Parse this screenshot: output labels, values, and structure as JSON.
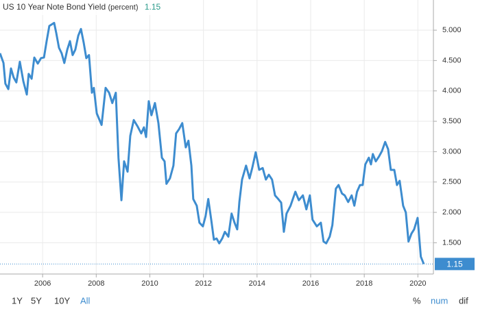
{
  "chart_data": {
    "type": "line",
    "title": "US 10 Year Note Bond Yield",
    "subtitle": "(percent)",
    "current_value": 1.15,
    "color": "#3d8ccf",
    "grid": true,
    "y_axis_side": "right",
    "xlim": [
      2004.41,
      2020.58
    ],
    "xticks": [
      2006,
      2008,
      2010,
      2012,
      2014,
      2016,
      2018,
      2020
    ],
    "ylim": [
      0.985,
      5.497
    ],
    "yticks": [
      {
        "value": 1.5,
        "label": "1.500"
      },
      {
        "value": 2,
        "label": "2.000"
      },
      {
        "value": 2.5,
        "label": "2.500"
      },
      {
        "value": 3,
        "label": "3.000"
      },
      {
        "value": 3.5,
        "label": "3.500"
      },
      {
        "value": 4,
        "label": "4.000"
      },
      {
        "value": 4.5,
        "label": "4.500"
      },
      {
        "value": 5,
        "label": "5.000"
      }
    ],
    "series": [
      {
        "name": "US 10 Year Note Bond Yield",
        "color": "#3d8ccf",
        "x": [
          2004.41,
          2004.54,
          2004.61,
          2004.72,
          2004.82,
          2004.92,
          2005.02,
          2005.15,
          2005.28,
          2005.41,
          2005.48,
          2005.59,
          2005.69,
          2005.82,
          2005.94,
          2006.05,
          2006.15,
          2006.25,
          2006.43,
          2006.51,
          2006.61,
          2006.71,
          2006.81,
          2006.92,
          2007.02,
          2007.12,
          2007.22,
          2007.33,
          2007.43,
          2007.53,
          2007.63,
          2007.73,
          2007.84,
          2007.91,
          2008.02,
          2008.2,
          2008.35,
          2008.48,
          2008.6,
          2008.73,
          2008.83,
          2008.94,
          2009.04,
          2009.17,
          2009.27,
          2009.4,
          2009.55,
          2009.68,
          2009.78,
          2009.86,
          2009.96,
          2010.06,
          2010.19,
          2010.32,
          2010.45,
          2010.55,
          2010.62,
          2010.75,
          2010.88,
          2010.98,
          2011.09,
          2011.21,
          2011.34,
          2011.44,
          2011.55,
          2011.62,
          2011.75,
          2011.85,
          2011.98,
          2012.08,
          2012.18,
          2012.29,
          2012.39,
          2012.49,
          2012.59,
          2012.7,
          2012.8,
          2012.93,
          2013.05,
          2013.16,
          2013.26,
          2013.34,
          2013.44,
          2013.59,
          2013.72,
          2013.82,
          2013.95,
          2014.08,
          2014.21,
          2014.33,
          2014.44,
          2014.56,
          2014.67,
          2014.79,
          2014.9,
          2015.0,
          2015.1,
          2015.25,
          2015.43,
          2015.56,
          2015.71,
          2015.84,
          2015.97,
          2016.07,
          2016.23,
          2016.38,
          2016.48,
          2016.58,
          2016.71,
          2016.81,
          2016.94,
          2017.04,
          2017.17,
          2017.27,
          2017.4,
          2017.53,
          2017.63,
          2017.73,
          2017.84,
          2017.94,
          2018.04,
          2018.17,
          2018.25,
          2018.32,
          2018.43,
          2018.55,
          2018.66,
          2018.78,
          2018.89,
          2018.99,
          2019.12,
          2019.22,
          2019.32,
          2019.45,
          2019.55,
          2019.65,
          2019.76,
          2019.86,
          2019.99,
          2020.11,
          2020.22
        ],
        "values": [
          4.62,
          4.46,
          4.12,
          4.03,
          4.37,
          4.22,
          4.14,
          4.48,
          4.16,
          3.94,
          4.28,
          4.2,
          4.55,
          4.45,
          4.54,
          4.55,
          4.82,
          5.07,
          5.12,
          4.95,
          4.71,
          4.62,
          4.46,
          4.68,
          4.82,
          4.59,
          4.68,
          4.91,
          5.02,
          4.8,
          4.54,
          4.59,
          3.97,
          4.05,
          3.63,
          3.44,
          4.05,
          3.97,
          3.8,
          3.97,
          2.9,
          2.2,
          2.84,
          2.67,
          3.26,
          3.52,
          3.41,
          3.3,
          3.4,
          3.24,
          3.83,
          3.6,
          3.8,
          3.47,
          2.9,
          2.84,
          2.47,
          2.56,
          2.77,
          3.3,
          3.37,
          3.47,
          3.07,
          3.18,
          2.77,
          2.22,
          2.11,
          1.83,
          1.77,
          1.94,
          2.22,
          1.88,
          1.55,
          1.57,
          1.49,
          1.57,
          1.68,
          1.6,
          1.98,
          1.83,
          1.72,
          2.17,
          2.54,
          2.77,
          2.56,
          2.73,
          2.99,
          2.7,
          2.73,
          2.54,
          2.62,
          2.54,
          2.28,
          2.22,
          2.16,
          1.68,
          1.98,
          2.11,
          2.34,
          2.2,
          2.28,
          2.05,
          2.28,
          1.88,
          1.77,
          1.83,
          1.52,
          1.49,
          1.6,
          1.79,
          2.39,
          2.45,
          2.31,
          2.28,
          2.17,
          2.28,
          2.11,
          2.34,
          2.45,
          2.45,
          2.79,
          2.9,
          2.79,
          2.96,
          2.84,
          2.92,
          3.01,
          3.16,
          3.04,
          2.7,
          2.7,
          2.45,
          2.52,
          2.11,
          2.0,
          1.52,
          1.65,
          1.72,
          1.91,
          1.27,
          1.15
        ]
      }
    ]
  },
  "range_buttons": [
    "1Y",
    "5Y",
    "10Y",
    "All"
  ],
  "mode_buttons": [
    "%",
    "num",
    "dif"
  ]
}
